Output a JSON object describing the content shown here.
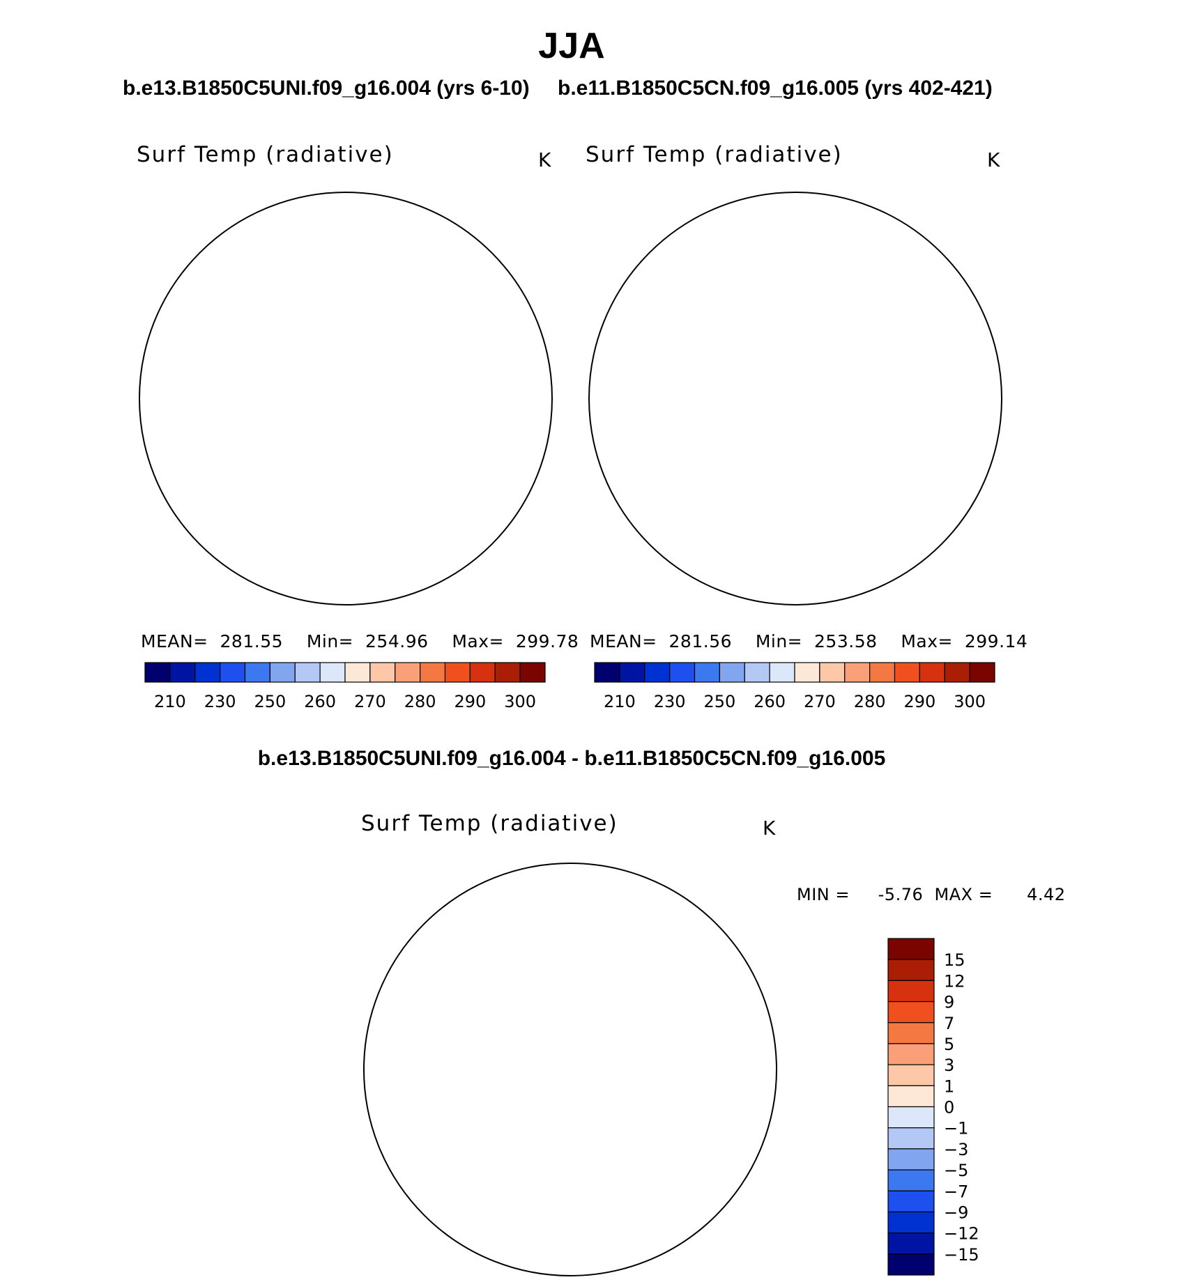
{
  "page": {
    "season": "JJA",
    "case_a_title": "b.e13.B1850C5UNI.f09_g16.004 (yrs 6-10)",
    "case_b_title": "b.e11.B1850C5CN.f09_g16.005 (yrs 402-421)",
    "diff_title": "b.e13.B1850C5UNI.f09_g16.004 - b.e11.B1850C5CN.f09_g16.005"
  },
  "panels": {
    "a": {
      "variable": "Surf Temp (radiative)",
      "units": "K",
      "mean_label": "MEAN=",
      "mean": "281.55",
      "min_label": "Min=",
      "min": "254.96",
      "max_label": "Max=",
      "max": "299.78"
    },
    "b": {
      "variable": "Surf Temp (radiative)",
      "units": "K",
      "mean_label": "MEAN=",
      "mean": "281.56",
      "min_label": "Min=",
      "min": "253.58",
      "max_label": "Max=",
      "max": "299.14"
    },
    "diff": {
      "variable": "Surf Temp (radiative)",
      "units": "K",
      "min_label": "MIN =",
      "min": "-5.76",
      "max_label": "MAX =",
      "max": "4.42"
    }
  },
  "colorbar_abs": {
    "colors": [
      "#00006e",
      "#0014a4",
      "#0032d2",
      "#1e50f0",
      "#3c78f0",
      "#82a5f0",
      "#b4c8f5",
      "#dce8fa",
      "#fde8d8",
      "#fcc8a8",
      "#f9a078",
      "#f47842",
      "#f0501e",
      "#d73210",
      "#aa1e05",
      "#7a0500"
    ],
    "tick_labels": [
      "210",
      "230",
      "250",
      "260",
      "270",
      "280",
      "290",
      "300"
    ]
  },
  "colorbar_diff": {
    "colors_top_to_bottom": [
      "#7a0500",
      "#aa1e05",
      "#d73210",
      "#f0501e",
      "#f47842",
      "#f9a078",
      "#fcc8a8",
      "#fde8d8",
      "#dce8fa",
      "#b4c8f5",
      "#82a5f0",
      "#3c78f0",
      "#1e50f0",
      "#0032d2",
      "#0014a4",
      "#00006e"
    ],
    "tick_labels_top_to_bottom": [
      "15",
      "12",
      "9",
      "7",
      "5",
      "3",
      "1",
      "0",
      "−1",
      "−3",
      "−5",
      "−7",
      "−9",
      "−12",
      "−15"
    ]
  },
  "map_colors": {
    "abs_ring_outer": "#e03c14",
    "abs_ring_mid": "#f0501e",
    "abs_ring_inner": "#f47842",
    "abs_land_warm": "#f9a078",
    "abs_ice": "#fcc8a8",
    "abs_greenland": "#b4c8f5",
    "abs_greenland_core": "#82a5f0",
    "diff_base": "#dce8fa",
    "diff_cool": "#b4c8f5",
    "diff_cooler": "#82a5f0",
    "diff_warm": "#fde8d8",
    "diff_warmer": "#fcc8a8"
  }
}
